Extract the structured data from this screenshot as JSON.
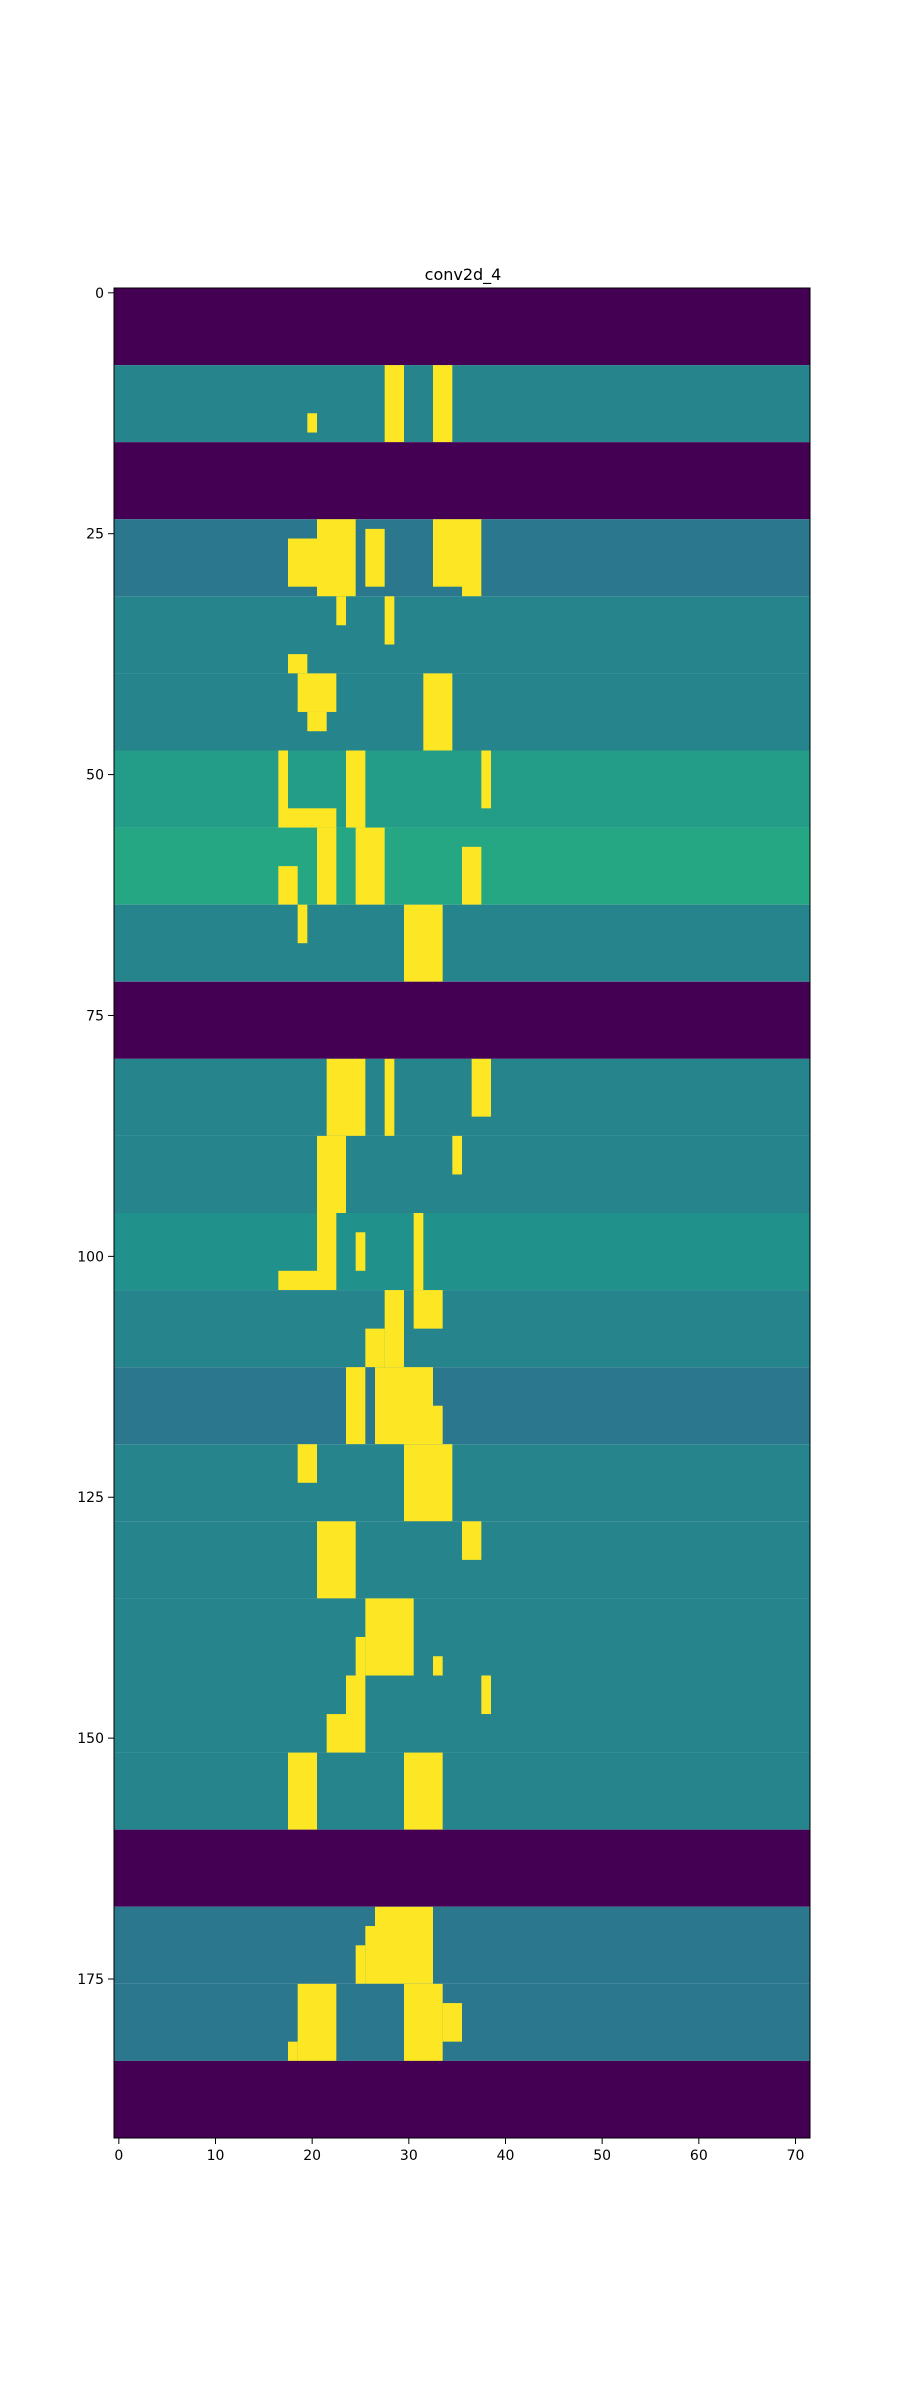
{
  "chart_data": {
    "type": "heatmap",
    "title": "conv2d_4",
    "xlabel": "",
    "ylabel": "",
    "grid": false,
    "colormap": "viridis",
    "colors": {
      "min": "#440154",
      "mid": "#21918c",
      "max": "#fde725"
    },
    "xlim": [
      -0.5,
      71.5
    ],
    "ylim": [
      191.5,
      -0.5
    ],
    "xticks": [
      0,
      10,
      20,
      30,
      40,
      50,
      60,
      70
    ],
    "yticks": [
      0,
      25,
      50,
      75,
      100,
      125,
      150,
      175
    ],
    "columns": 72,
    "rows": 192,
    "band_height": 8,
    "bands": [
      {
        "rows": [
          0,
          8
        ],
        "background": 0.0,
        "highlights": []
      },
      {
        "rows": [
          8,
          16
        ],
        "background": 0.45,
        "highlights": [
          [
            20,
            21,
            13,
            15
          ],
          [
            28,
            30,
            8,
            16
          ],
          [
            33,
            35,
            8,
            16
          ]
        ]
      },
      {
        "rows": [
          16,
          24
        ],
        "background": 0.0,
        "highlights": []
      },
      {
        "rows": [
          24,
          32
        ],
        "background": 0.4,
        "highlights": [
          [
            21,
            25,
            24,
            32
          ],
          [
            26,
            28,
            25,
            31
          ],
          [
            33,
            36,
            24,
            31
          ],
          [
            36,
            38,
            24,
            32
          ],
          [
            18,
            21,
            26,
            31
          ]
        ]
      },
      {
        "rows": [
          32,
          40
        ],
        "background": 0.45,
        "highlights": [
          [
            23,
            24,
            32,
            35
          ],
          [
            28,
            29,
            32,
            37
          ],
          [
            18,
            20,
            38,
            40
          ]
        ]
      },
      {
        "rows": [
          40,
          48
        ],
        "background": 0.45,
        "highlights": [
          [
            19,
            23,
            40,
            44
          ],
          [
            20,
            22,
            44,
            46
          ],
          [
            32,
            35,
            40,
            48
          ]
        ]
      },
      {
        "rows": [
          48,
          56
        ],
        "background": 0.55,
        "highlights": [
          [
            17,
            18,
            48,
            56
          ],
          [
            24,
            26,
            48,
            56
          ],
          [
            18,
            23,
            54,
            56
          ],
          [
            38,
            39,
            48,
            54
          ]
        ]
      },
      {
        "rows": [
          56,
          64
        ],
        "background": 0.6,
        "highlights": [
          [
            17,
            19,
            60,
            64
          ],
          [
            21,
            23,
            56,
            64
          ],
          [
            25,
            28,
            56,
            64
          ],
          [
            36,
            38,
            58,
            64
          ]
        ]
      },
      {
        "rows": [
          64,
          72
        ],
        "background": 0.45,
        "highlights": [
          [
            19,
            20,
            64,
            68
          ],
          [
            30,
            34,
            64,
            72
          ]
        ]
      },
      {
        "rows": [
          72,
          80
        ],
        "background": 0.0,
        "highlights": []
      },
      {
        "rows": [
          80,
          88
        ],
        "background": 0.45,
        "highlights": [
          [
            22,
            26,
            80,
            88
          ],
          [
            28,
            29,
            80,
            88
          ],
          [
            37,
            39,
            80,
            86
          ]
        ]
      },
      {
        "rows": [
          88,
          96
        ],
        "background": 0.45,
        "highlights": [
          [
            21,
            24,
            88,
            96
          ],
          [
            35,
            36,
            88,
            92
          ]
        ]
      },
      {
        "rows": [
          96,
          104
        ],
        "background": 0.5,
        "highlights": [
          [
            21,
            23,
            96,
            104
          ],
          [
            17,
            21,
            102,
            104
          ],
          [
            31,
            32,
            96,
            104
          ],
          [
            25,
            26,
            98,
            102
          ]
        ]
      },
      {
        "rows": [
          104,
          112
        ],
        "background": 0.45,
        "highlights": [
          [
            28,
            30,
            104,
            112
          ],
          [
            31,
            34,
            104,
            108
          ],
          [
            26,
            28,
            108,
            112
          ]
        ]
      },
      {
        "rows": [
          112,
          120
        ],
        "background": 0.4,
        "highlights": [
          [
            24,
            26,
            112,
            120
          ],
          [
            27,
            33,
            112,
            120
          ],
          [
            33,
            34,
            116,
            120
          ]
        ]
      },
      {
        "rows": [
          120,
          128
        ],
        "background": 0.45,
        "highlights": [
          [
            30,
            35,
            120,
            128
          ],
          [
            19,
            21,
            120,
            124
          ]
        ]
      },
      {
        "rows": [
          128,
          136
        ],
        "background": 0.45,
        "highlights": [
          [
            21,
            25,
            128,
            136
          ],
          [
            36,
            38,
            128,
            132
          ]
        ]
      },
      {
        "rows": [
          136,
          144
        ],
        "background": 0.45,
        "highlights": [
          [
            26,
            31,
            136,
            144
          ],
          [
            25,
            26,
            140,
            144
          ],
          [
            33,
            34,
            142,
            144
          ]
        ]
      },
      {
        "rows": [
          144,
          152
        ],
        "background": 0.45,
        "highlights": [
          [
            24,
            26,
            144,
            152
          ],
          [
            22,
            24,
            148,
            152
          ],
          [
            38,
            39,
            144,
            148
          ]
        ]
      },
      {
        "rows": [
          152,
          160
        ],
        "background": 0.45,
        "highlights": [
          [
            18,
            21,
            152,
            160
          ],
          [
            30,
            34,
            152,
            160
          ]
        ]
      },
      {
        "rows": [
          160,
          168
        ],
        "background": 0.0,
        "highlights": []
      },
      {
        "rows": [
          168,
          176
        ],
        "background": 0.4,
        "highlights": [
          [
            27,
            33,
            168,
            176
          ],
          [
            26,
            27,
            170,
            176
          ],
          [
            25,
            26,
            172,
            176
          ]
        ]
      },
      {
        "rows": [
          176,
          184
        ],
        "background": 0.4,
        "highlights": [
          [
            19,
            23,
            176,
            184
          ],
          [
            18,
            19,
            182,
            184
          ],
          [
            30,
            34,
            176,
            184
          ],
          [
            34,
            36,
            178,
            182
          ]
        ]
      },
      {
        "rows": [
          184,
          192
        ],
        "background": 0.0,
        "highlights": []
      }
    ]
  }
}
